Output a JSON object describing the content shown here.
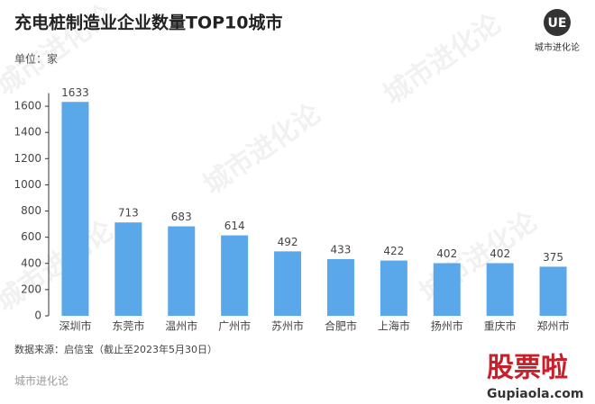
{
  "chart_data": {
    "type": "bar",
    "title": "充电桩制造业企业数量TOP10城市",
    "unit": "单位：家",
    "source": "数据来源：启信宝（截止至2023年5月30日）",
    "footer": "城市进化论",
    "logo": "UE",
    "logo_text": "城市进化论",
    "watermark": "城市进化论",
    "site_watermark": "股票啦",
    "site_url": "Gupiaola.com",
    "categories": [
      "深圳市",
      "东莞市",
      "温州市",
      "广州市",
      "苏州市",
      "合肥市",
      "上海市",
      "扬州市",
      "重庆市",
      "郑州市"
    ],
    "values": [
      1633,
      713,
      683,
      614,
      492,
      433,
      422,
      402,
      402,
      375
    ],
    "color": "#5aa7e9",
    "ylim": [
      0,
      1700
    ],
    "yticks": [
      0,
      200,
      400,
      600,
      800,
      1000,
      1200,
      1400,
      1600
    ]
  }
}
